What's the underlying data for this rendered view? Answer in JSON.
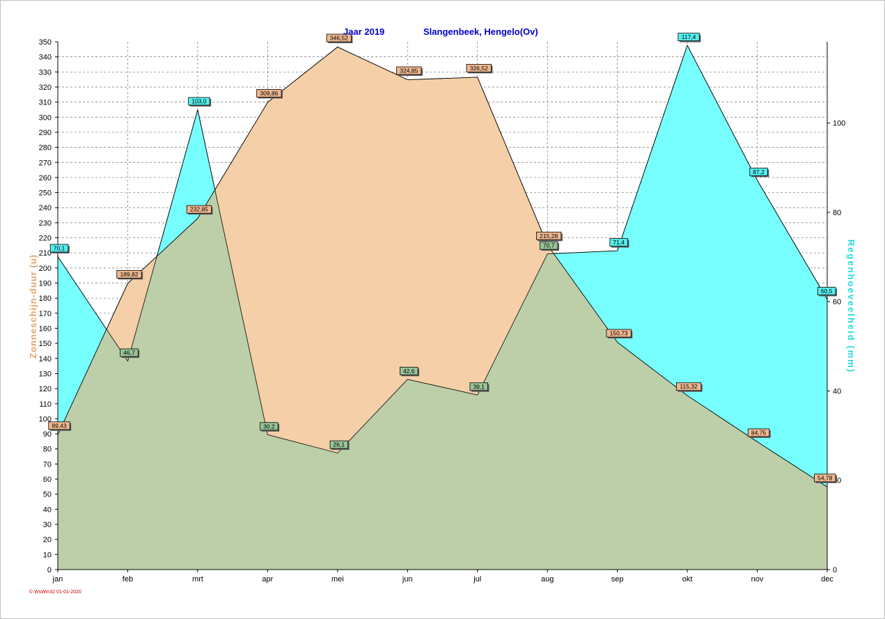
{
  "chart_data": {
    "type": "area",
    "title": "Jaar  2019",
    "subtitle": "Slangenbeek, Hengelo(Ov)",
    "categories": [
      "jan",
      "feb",
      "mrt",
      "apr",
      "mei",
      "jun",
      "jul",
      "aug",
      "sep",
      "okt",
      "nov",
      "dec"
    ],
    "y_left": {
      "label": "Zonneschijn-duur  (u)",
      "range": [
        0,
        350
      ],
      "ticks": [
        0,
        10,
        20,
        30,
        40,
        50,
        60,
        70,
        80,
        90,
        100,
        110,
        120,
        130,
        140,
        150,
        160,
        170,
        180,
        190,
        200,
        210,
        220,
        230,
        240,
        250,
        260,
        270,
        280,
        290,
        300,
        310,
        320,
        330,
        340,
        350
      ]
    },
    "y_right": {
      "label": "Regenhoeveelheid  (mm)",
      "range": [
        0,
        118.2
      ],
      "ticks": [
        0,
        20,
        40,
        60,
        80,
        100
      ]
    },
    "series": [
      {
        "name": "Zonneschijn-duur  (u)",
        "axis": "left",
        "color": "#f4cfa8",
        "label_color": "#f0b890",
        "values": [
          89.43,
          189.82,
          232.85,
          309.86,
          346.52,
          324.85,
          326.52,
          215.28,
          150.73,
          115.32,
          84.75,
          54.78
        ],
        "labels": [
          "89,43",
          "189,82",
          "232,85",
          "309,86",
          "346,52",
          "324,85",
          "326,52",
          "215,28",
          "150,73",
          "115,32",
          "84,75",
          "54,78"
        ]
      },
      {
        "name": "Regenhoeveelheid  (mm)",
        "axis": "right",
        "color": "#77ffff",
        "label_color": "#55eeee",
        "values": [
          70.1,
          46.7,
          103.0,
          30.2,
          26.1,
          42.6,
          39.1,
          70.7,
          71.4,
          117.4,
          87.2,
          60.5
        ],
        "labels": [
          "70,1",
          "46,7",
          "103,0",
          "30,2",
          "26,1",
          "42,6",
          "39,1",
          "70,7",
          "71,4",
          "117,4",
          "87,2",
          "60,5"
        ]
      }
    ],
    "overlap_color": "#bccfa8",
    "grid": true,
    "footer": "© WsWin32  01-01-2020"
  }
}
